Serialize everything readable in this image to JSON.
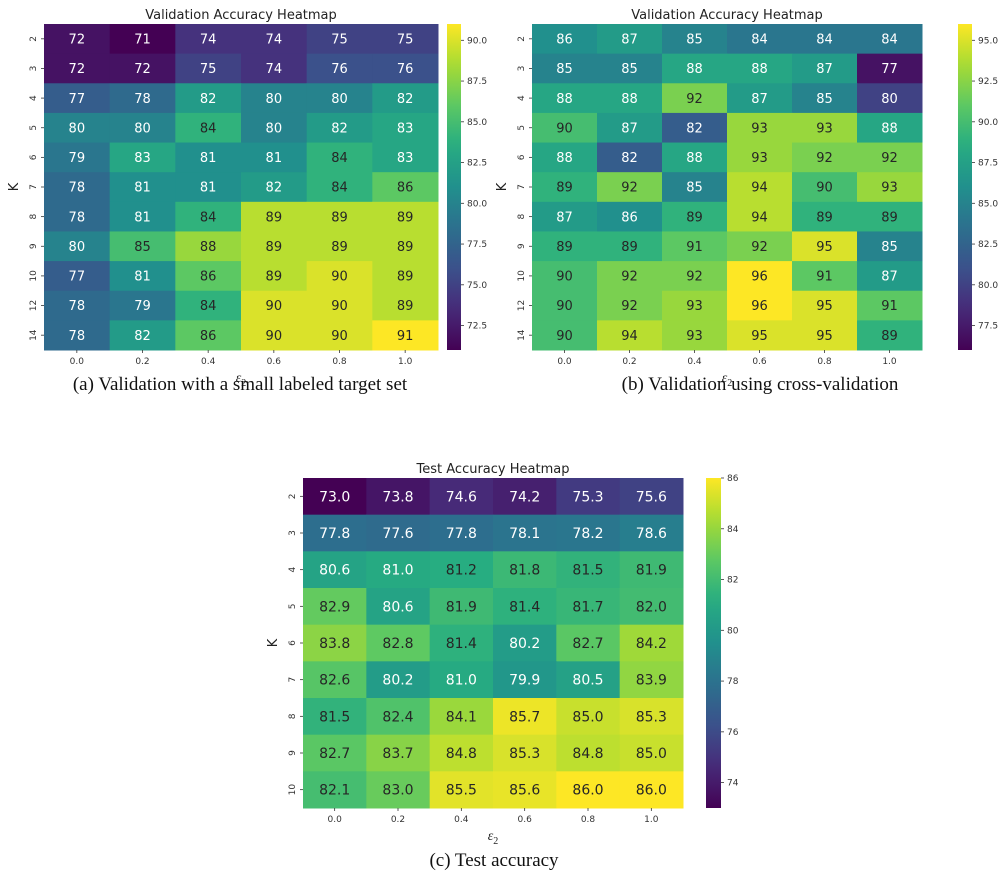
{
  "chart_data": [
    {
      "type": "heatmap",
      "title": "Validation Accuracy Heatmap",
      "caption": "(a) Validation with a small labeled target set",
      "xlabel": "ε",
      "xlabel_sub": "2",
      "ylabel": "K",
      "x": [
        "0.0",
        "0.2",
        "0.4",
        "0.6",
        "0.8",
        "1.0"
      ],
      "y": [
        "2",
        "3",
        "4",
        "5",
        "6",
        "7",
        "8",
        "9",
        "10",
        "12",
        "14"
      ],
      "values": [
        [
          72,
          71,
          74,
          74,
          75,
          75
        ],
        [
          72,
          72,
          75,
          74,
          76,
          76
        ],
        [
          77,
          78,
          82,
          80,
          80,
          82
        ],
        [
          80,
          80,
          84,
          80,
          82,
          83
        ],
        [
          79,
          83,
          81,
          81,
          84,
          83
        ],
        [
          78,
          81,
          81,
          82,
          84,
          86
        ],
        [
          78,
          81,
          84,
          89,
          89,
          89
        ],
        [
          80,
          85,
          88,
          89,
          89,
          89
        ],
        [
          77,
          81,
          86,
          89,
          90,
          89
        ],
        [
          78,
          79,
          84,
          90,
          90,
          89
        ],
        [
          78,
          82,
          86,
          90,
          90,
          91
        ]
      ],
      "annot_decimals": 0,
      "colorscale": "viridis",
      "vmin": 71,
      "vmax": 91,
      "colorbar_ticks": [
        "72.5",
        "75.0",
        "77.5",
        "80.0",
        "82.5",
        "85.0",
        "87.5",
        "90.0"
      ]
    },
    {
      "type": "heatmap",
      "title": "Validation Accuracy Heatmap",
      "caption": "(b) Validation using cross-validation",
      "xlabel": "ε",
      "xlabel_sub": "2",
      "ylabel": "K",
      "x": [
        "0.0",
        "0.2",
        "0.4",
        "0.6",
        "0.8",
        "1.0"
      ],
      "y": [
        "2",
        "3",
        "4",
        "5",
        "6",
        "7",
        "8",
        "9",
        "10",
        "12",
        "14"
      ],
      "values": [
        [
          86,
          87,
          85,
          84,
          84,
          84
        ],
        [
          85,
          85,
          88,
          88,
          87,
          77
        ],
        [
          88,
          88,
          92,
          87,
          85,
          80
        ],
        [
          90,
          87,
          82,
          93,
          93,
          88
        ],
        [
          88,
          82,
          88,
          93,
          92,
          92
        ],
        [
          89,
          92,
          85,
          94,
          90,
          93
        ],
        [
          87,
          86,
          89,
          94,
          89,
          89
        ],
        [
          89,
          89,
          91,
          92,
          95,
          85
        ],
        [
          90,
          92,
          92,
          96,
          91,
          87
        ],
        [
          90,
          92,
          93,
          96,
          95,
          91
        ],
        [
          90,
          94,
          93,
          95,
          95,
          89
        ]
      ],
      "annot_decimals": 0,
      "colorscale": "viridis",
      "vmin": 76,
      "vmax": 96,
      "colorbar_ticks": [
        "77.5",
        "80.0",
        "82.5",
        "85.0",
        "87.5",
        "90.0",
        "92.5",
        "95.0"
      ]
    },
    {
      "type": "heatmap",
      "title": "Test Accuracy Heatmap",
      "caption": "(c) Test accuracy",
      "xlabel": "ε",
      "xlabel_sub": "2",
      "ylabel": "K",
      "x": [
        "0.0",
        "0.2",
        "0.4",
        "0.6",
        "0.8",
        "1.0"
      ],
      "y": [
        "2",
        "3",
        "4",
        "5",
        "6",
        "7",
        "8",
        "9",
        "10"
      ],
      "values": [
        [
          73.0,
          73.8,
          74.6,
          74.2,
          75.3,
          75.6
        ],
        [
          77.8,
          77.6,
          77.8,
          78.1,
          78.2,
          78.6
        ],
        [
          80.6,
          81.0,
          81.2,
          81.8,
          81.5,
          81.9
        ],
        [
          82.9,
          80.6,
          81.9,
          81.4,
          81.7,
          82.0
        ],
        [
          83.8,
          82.8,
          81.4,
          80.2,
          82.7,
          84.2
        ],
        [
          82.6,
          80.2,
          81.0,
          79.9,
          80.5,
          83.9
        ],
        [
          81.5,
          82.4,
          84.1,
          85.7,
          85.0,
          85.3
        ],
        [
          82.7,
          83.7,
          84.8,
          85.3,
          84.8,
          85.0
        ],
        [
          82.1,
          83.0,
          85.5,
          85.6,
          86.0,
          86.0
        ]
      ],
      "annot_decimals": 1,
      "colorscale": "viridis",
      "vmin": 73,
      "vmax": 86,
      "colorbar_ticks": [
        "74",
        "76",
        "78",
        "80",
        "82",
        "84",
        "86"
      ]
    }
  ]
}
